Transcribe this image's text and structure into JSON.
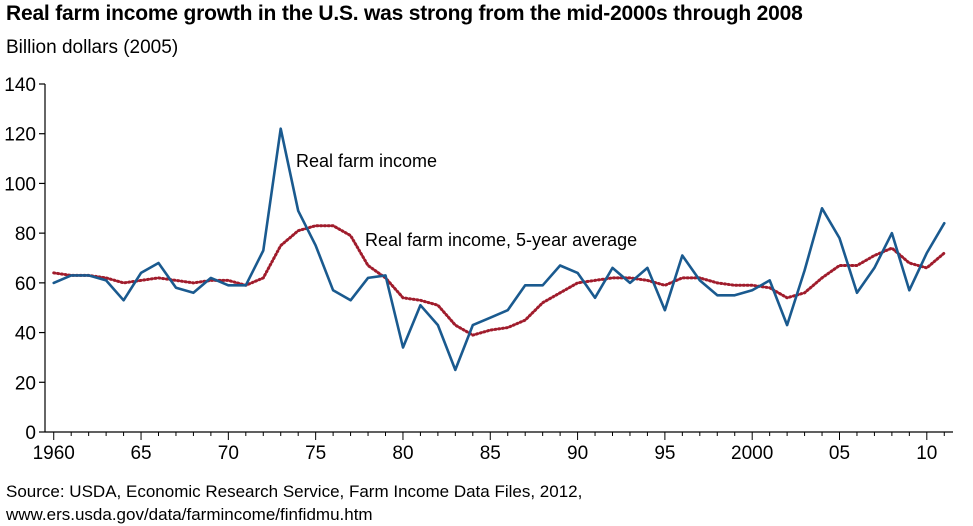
{
  "header": {
    "title": "Real farm income growth in the U.S. was strong from the mid-2000s through 2008",
    "subtitle": "Billion dollars (2005)"
  },
  "source": {
    "line1": "Source:  USDA, Economic Research Service, Farm Income Data Files, 2012,",
    "line2": "www.ers.usda.gov/data/farmincome/finfidmu.htm"
  },
  "colors": {
    "real_income": "#1a5a8f",
    "five_year_average": "#a01c2c",
    "axis": "#000000"
  },
  "chart_data": {
    "type": "line",
    "title": "Real farm income growth in the U.S. was strong from the mid-2000s through 2008",
    "subtitle": "Billion dollars (2005)",
    "xlabel": "",
    "ylabel": "",
    "xlim": [
      1960,
      2011
    ],
    "ylim": [
      0,
      140
    ],
    "yticks": [
      0,
      20,
      40,
      60,
      80,
      100,
      120,
      140
    ],
    "xticks": [
      {
        "value": 1960,
        "label": "1960"
      },
      {
        "value": 1965,
        "label": "65"
      },
      {
        "value": 1970,
        "label": "70"
      },
      {
        "value": 1975,
        "label": "75"
      },
      {
        "value": 1980,
        "label": "80"
      },
      {
        "value": 1985,
        "label": "85"
      },
      {
        "value": 1990,
        "label": "90"
      },
      {
        "value": 1995,
        "label": "95"
      },
      {
        "value": 2000,
        "label": "2000"
      },
      {
        "value": 2005,
        "label": "05"
      },
      {
        "value": 2010,
        "label": "10"
      }
    ],
    "grid": false,
    "x": [
      1960,
      1961,
      1962,
      1963,
      1964,
      1965,
      1966,
      1967,
      1968,
      1969,
      1970,
      1971,
      1972,
      1973,
      1974,
      1975,
      1976,
      1977,
      1978,
      1979,
      1980,
      1981,
      1982,
      1983,
      1984,
      1985,
      1986,
      1987,
      1988,
      1989,
      1990,
      1991,
      1992,
      1993,
      1994,
      1995,
      1996,
      1997,
      1998,
      1999,
      2000,
      2001,
      2002,
      2003,
      2004,
      2005,
      2006,
      2007,
      2008,
      2009,
      2010,
      2011
    ],
    "series": [
      {
        "name": "Real farm income",
        "style": "solid",
        "values": [
          60,
          63,
          63,
          61,
          53,
          64,
          68,
          58,
          56,
          62,
          59,
          59,
          73,
          122,
          89,
          75,
          57,
          53,
          62,
          63,
          34,
          51,
          43,
          25,
          43,
          46,
          49,
          59,
          59,
          67,
          64,
          54,
          66,
          60,
          66,
          49,
          71,
          61,
          55,
          55,
          57,
          61,
          43,
          65,
          90,
          78,
          56,
          66,
          80,
          57,
          72,
          84
        ]
      },
      {
        "name": "Real farm income, 5-year average",
        "style": "dotted",
        "values": [
          64,
          63,
          63,
          62,
          60,
          61,
          62,
          61,
          60,
          61,
          61,
          59,
          62,
          75,
          81,
          83,
          83,
          79,
          67,
          62,
          54,
          53,
          51,
          43,
          39,
          41,
          42,
          45,
          52,
          56,
          60,
          61,
          62,
          62,
          61,
          59,
          62,
          62,
          60,
          59,
          59,
          58,
          54,
          56,
          62,
          67,
          67,
          71,
          74,
          68,
          66,
          72
        ]
      }
    ],
    "annotations": [
      {
        "text": "Real farm income",
        "series": 0
      },
      {
        "text": "Real farm income, 5-year average",
        "series": 1
      }
    ]
  }
}
